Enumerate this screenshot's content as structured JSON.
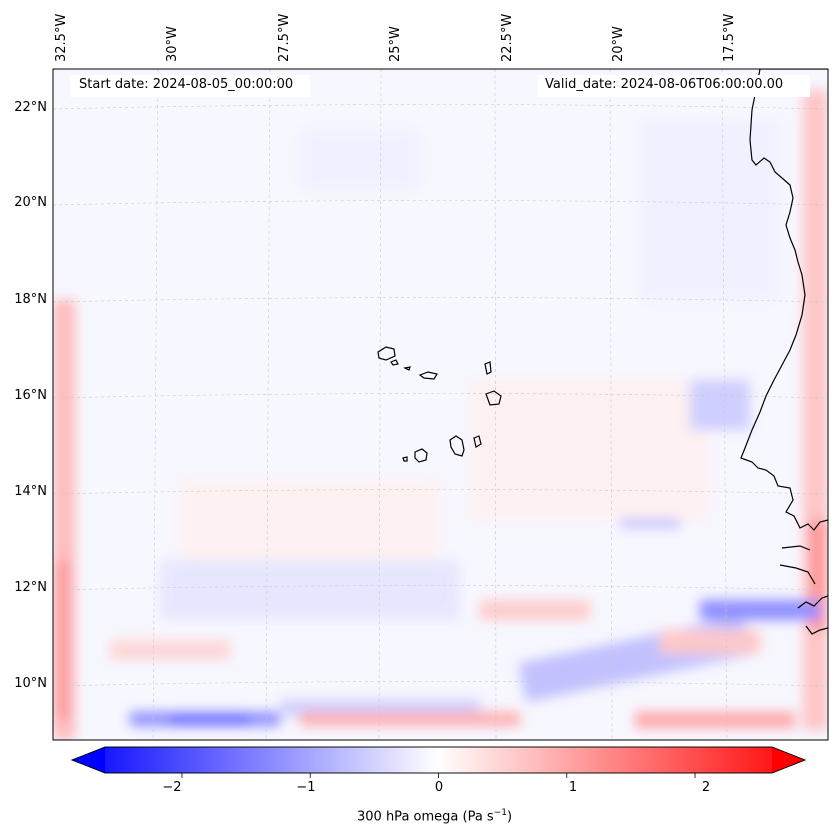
{
  "map": {
    "header": {
      "start": "Start date: 2024-08-05_00:00:00",
      "valid": "Valid_date: 2024-08-06T06:00:00.00"
    },
    "lon_labels": [
      "32.5°W",
      "30°W",
      "27.5°W",
      "25°W",
      "22.5°W",
      "20°W",
      "17.5°W"
    ],
    "lat_labels": [
      "22°N",
      "20°N",
      "18°N",
      "16°N",
      "14°N",
      "12°N",
      "10°N"
    ],
    "extent": {
      "lon_min": -32.6,
      "lon_max": -15.6,
      "lat_min": 8.9,
      "lat_max": 22.8
    },
    "gridlines": true
  },
  "colorbar": {
    "label_prefix": "300 hPa omega (Pa s",
    "label_exp": "−1",
    "label_suffix": ")",
    "ticks": [
      "−2",
      "−1",
      "0",
      "1",
      "2"
    ],
    "tick_values": [
      -2,
      -1,
      0,
      1,
      2
    ],
    "range": [
      -2.6,
      2.6
    ],
    "colormap": "bwr",
    "colors": {
      "neg": "#0000ff",
      "zero": "#ffffff",
      "pos": "#ff0000"
    }
  }
}
